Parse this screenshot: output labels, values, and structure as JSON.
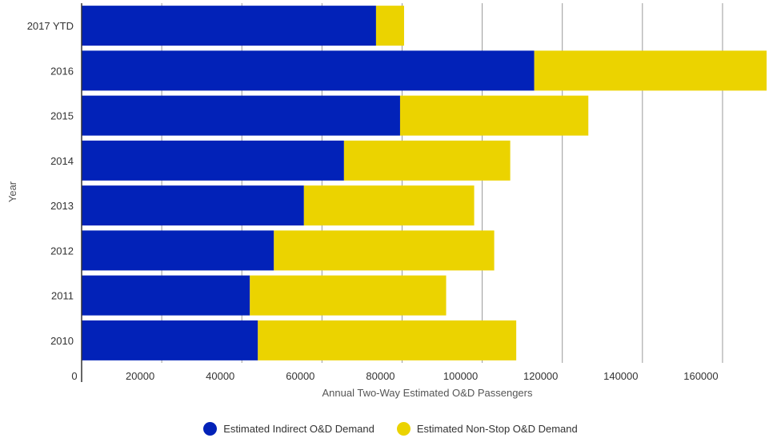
{
  "chart_data": {
    "type": "bar",
    "orientation": "horizontal",
    "stacked": true,
    "categories": [
      "2017 YTD",
      "2016",
      "2015",
      "2014",
      "2013",
      "2012",
      "2011",
      "2010"
    ],
    "series": [
      {
        "name": "Estimated Indirect O&D Demand",
        "color": "#0222b8",
        "values": [
          73500,
          113000,
          79500,
          65500,
          55500,
          48000,
          42000,
          44000
        ]
      },
      {
        "name": "Estimated Non-Stop O&D Demand",
        "color": "#ebd300",
        "values": [
          7000,
          58000,
          47000,
          41500,
          42500,
          55000,
          49000,
          64500
        ]
      }
    ],
    "xlabel": "Annual Two-Way Estimated O&D Passengers",
    "ylabel": "Year",
    "xlim": [
      0,
      171000
    ],
    "xticks": [
      0,
      20000,
      40000,
      60000,
      80000,
      100000,
      120000,
      140000,
      160000
    ],
    "grid": true,
    "legend_position": "bottom"
  }
}
